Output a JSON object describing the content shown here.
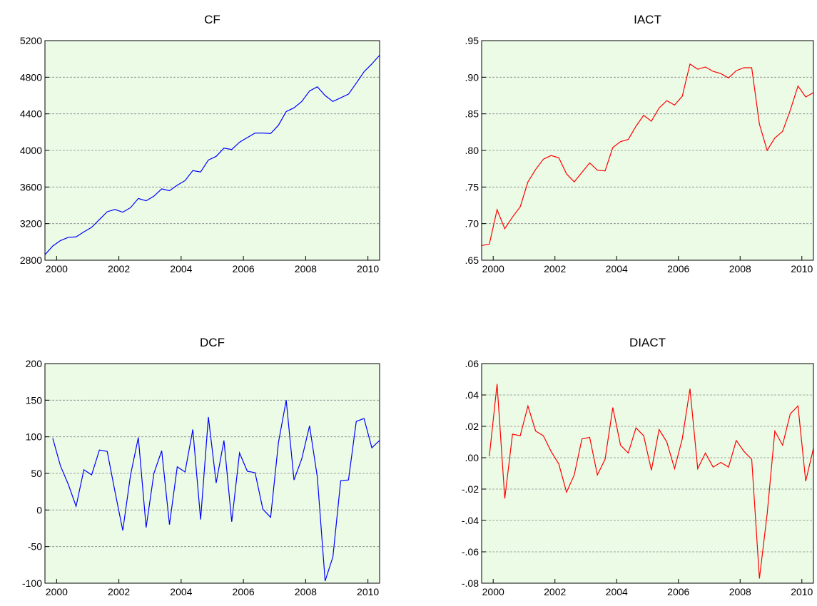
{
  "chart_data": [
    {
      "type": "line",
      "title": "CF",
      "color": "#0000ff",
      "x": [
        2000.125,
        2000.375,
        2000.625,
        2000.875,
        2001.125,
        2001.375,
        2001.625,
        2001.875,
        2002.125,
        2002.375,
        2002.625,
        2002.875,
        2003.125,
        2003.375,
        2003.625,
        2003.875,
        2004.125,
        2004.375,
        2004.625,
        2004.875,
        2005.125,
        2005.375,
        2005.625,
        2005.875,
        2006.125,
        2006.375,
        2006.625,
        2006.875,
        2007.125,
        2007.375,
        2007.625,
        2007.875,
        2008.125,
        2008.375,
        2008.625,
        2008.875,
        2009.125,
        2009.375,
        2009.625,
        2009.875,
        2010.125,
        2010.375,
        2010.625,
        2010.875
      ],
      "values": [
        2860,
        2955,
        3015,
        3050,
        3055,
        3110,
        3160,
        3245,
        3330,
        3355,
        3325,
        3375,
        3475,
        3450,
        3500,
        3580,
        3560,
        3620,
        3670,
        3780,
        3765,
        3895,
        3935,
        4025,
        4010,
        4090,
        4140,
        4190,
        4190,
        4185,
        4275,
        4425,
        4465,
        4535,
        4650,
        4695,
        4600,
        4535,
        4575,
        4615,
        4735,
        4860,
        4945,
        5040
      ],
      "xlim": [
        2000.125,
        2010.875
      ],
      "xticks": [
        {
          "value": 2000.5,
          "label": "2000"
        },
        {
          "value": 2002.5,
          "label": "2002"
        },
        {
          "value": 2004.5,
          "label": "2004"
        },
        {
          "value": 2006.5,
          "label": "2006"
        },
        {
          "value": 2008.5,
          "label": "2008"
        },
        {
          "value": 2010.5,
          "label": "2010"
        }
      ],
      "ylim": [
        2800,
        5200
      ],
      "yticks": [
        2800,
        3200,
        3600,
        4000,
        4400,
        4800,
        5200
      ],
      "grid": true
    },
    {
      "type": "line",
      "title": "IACT",
      "color": "#ff0000",
      "x": [
        2000.125,
        2000.375,
        2000.625,
        2000.875,
        2001.125,
        2001.375,
        2001.625,
        2001.875,
        2002.125,
        2002.375,
        2002.625,
        2002.875,
        2003.125,
        2003.375,
        2003.625,
        2003.875,
        2004.125,
        2004.375,
        2004.625,
        2004.875,
        2005.125,
        2005.375,
        2005.625,
        2005.875,
        2006.125,
        2006.375,
        2006.625,
        2006.875,
        2007.125,
        2007.375,
        2007.625,
        2007.875,
        2008.125,
        2008.375,
        2008.625,
        2008.875,
        2009.125,
        2009.375,
        2009.625,
        2009.875,
        2010.125,
        2010.375,
        2010.625,
        2010.875
      ],
      "values": [
        0.67,
        0.672,
        0.719,
        0.693,
        0.709,
        0.723,
        0.757,
        0.774,
        0.788,
        0.793,
        0.79,
        0.768,
        0.757,
        0.77,
        0.783,
        0.773,
        0.772,
        0.804,
        0.812,
        0.815,
        0.833,
        0.848,
        0.84,
        0.858,
        0.868,
        0.862,
        0.874,
        0.918,
        0.911,
        0.914,
        0.908,
        0.905,
        0.899,
        0.909,
        0.913,
        0.913,
        0.836,
        0.8,
        0.817,
        0.826,
        0.855,
        0.888,
        0.873,
        0.879
      ],
      "xlim": [
        2000.125,
        2010.875
      ],
      "xticks": [
        {
          "value": 2000.5,
          "label": "2000"
        },
        {
          "value": 2002.5,
          "label": "2002"
        },
        {
          "value": 2004.5,
          "label": "2004"
        },
        {
          "value": 2006.5,
          "label": "2006"
        },
        {
          "value": 2008.5,
          "label": "2008"
        },
        {
          "value": 2010.5,
          "label": "2010"
        }
      ],
      "ylim": [
        0.65,
        0.95
      ],
      "yticks": [
        {
          "value": 0.65,
          "label": ".65"
        },
        {
          "value": 0.7,
          "label": ".70"
        },
        {
          "value": 0.75,
          "label": ".75"
        },
        {
          "value": 0.8,
          "label": ".80"
        },
        {
          "value": 0.85,
          "label": ".85"
        },
        {
          "value": 0.9,
          "label": ".90"
        },
        {
          "value": 0.95,
          "label": ".95"
        }
      ],
      "grid": true
    },
    {
      "type": "line",
      "title": "DCF",
      "color": "#0000ff",
      "x": [
        2000.125,
        2000.375,
        2000.625,
        2000.875,
        2001.125,
        2001.375,
        2001.625,
        2001.875,
        2002.125,
        2002.375,
        2002.625,
        2002.875,
        2003.125,
        2003.375,
        2003.625,
        2003.875,
        2004.125,
        2004.375,
        2004.625,
        2004.875,
        2005.125,
        2005.375,
        2005.625,
        2005.875,
        2006.125,
        2006.375,
        2006.625,
        2006.875,
        2007.125,
        2007.375,
        2007.625,
        2007.875,
        2008.125,
        2008.375,
        2008.625,
        2008.875,
        2009.125,
        2009.375,
        2009.625,
        2009.875,
        2010.125,
        2010.375,
        2010.625,
        2010.875
      ],
      "values": [
        null,
        98,
        60,
        35,
        5,
        55,
        48,
        82,
        80,
        25,
        -28,
        48,
        99,
        -24,
        50,
        81,
        -20,
        59,
        52,
        110,
        -13,
        127,
        37,
        95,
        -16,
        78,
        53,
        51,
        1,
        -10,
        92,
        150,
        41,
        70,
        115,
        45,
        -97,
        -64,
        40,
        41,
        121,
        125,
        85,
        95
      ],
      "xlim": [
        2000.125,
        2010.875
      ],
      "xticks": [
        {
          "value": 2000.5,
          "label": "2000"
        },
        {
          "value": 2002.5,
          "label": "2002"
        },
        {
          "value": 2004.5,
          "label": "2004"
        },
        {
          "value": 2006.5,
          "label": "2006"
        },
        {
          "value": 2008.5,
          "label": "2008"
        },
        {
          "value": 2010.5,
          "label": "2010"
        }
      ],
      "ylim": [
        -100,
        200
      ],
      "yticks": [
        -100,
        -50,
        0,
        50,
        100,
        150,
        200
      ],
      "grid": true
    },
    {
      "type": "line",
      "title": "DIACT",
      "color": "#ff0000",
      "x": [
        2000.125,
        2000.375,
        2000.625,
        2000.875,
        2001.125,
        2001.375,
        2001.625,
        2001.875,
        2002.125,
        2002.375,
        2002.625,
        2002.875,
        2003.125,
        2003.375,
        2003.625,
        2003.875,
        2004.125,
        2004.375,
        2004.625,
        2004.875,
        2005.125,
        2005.375,
        2005.625,
        2005.875,
        2006.125,
        2006.375,
        2006.625,
        2006.875,
        2007.125,
        2007.375,
        2007.625,
        2007.875,
        2008.125,
        2008.375,
        2008.625,
        2008.875,
        2009.125,
        2009.375,
        2009.625,
        2009.875,
        2010.125,
        2010.375,
        2010.625,
        2010.875
      ],
      "values": [
        null,
        0.001,
        0.047,
        -0.026,
        0.015,
        0.014,
        0.033,
        0.017,
        0.014,
        0.004,
        -0.004,
        -0.022,
        -0.011,
        0.012,
        0.013,
        -0.011,
        -0.001,
        0.032,
        0.008,
        0.003,
        0.019,
        0.014,
        -0.008,
        0.018,
        0.01,
        -0.007,
        0.012,
        0.044,
        -0.007,
        0.003,
        -0.006,
        -0.003,
        -0.006,
        0.011,
        0.004,
        -0.001,
        -0.077,
        -0.036,
        0.017,
        0.008,
        0.028,
        0.033,
        -0.015,
        0.006
      ],
      "xlim": [
        2000.125,
        2010.875
      ],
      "xticks": [
        {
          "value": 2000.5,
          "label": "2000"
        },
        {
          "value": 2002.5,
          "label": "2002"
        },
        {
          "value": 2004.5,
          "label": "2004"
        },
        {
          "value": 2006.5,
          "label": "2006"
        },
        {
          "value": 2008.5,
          "label": "2008"
        },
        {
          "value": 2010.5,
          "label": "2010"
        }
      ],
      "ylim": [
        -0.08,
        0.06
      ],
      "yticks": [
        {
          "value": -0.08,
          "label": "-.08"
        },
        {
          "value": -0.06,
          "label": "-.06"
        },
        {
          "value": -0.04,
          "label": "-.04"
        },
        {
          "value": -0.02,
          "label": "-.02"
        },
        {
          "value": 0,
          "label": ".00"
        },
        {
          "value": 0.02,
          "label": ".02"
        },
        {
          "value": 0.04,
          "label": ".04"
        },
        {
          "value": 0.06,
          "label": ".06"
        }
      ],
      "grid": true
    }
  ]
}
